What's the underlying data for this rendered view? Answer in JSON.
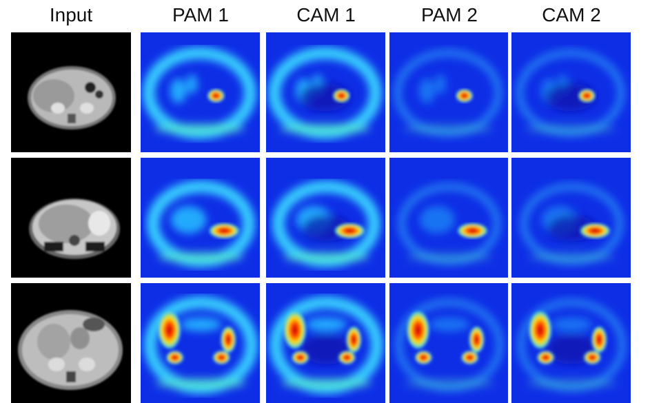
{
  "headers": [
    "Input",
    "PAM 1",
    "CAM 1",
    "PAM 2",
    "CAM 2"
  ],
  "rows": [
    {
      "panels": [
        "mri-abdomen-slice-1",
        "pam1-heatmap-row1",
        "cam1-heatmap-row1",
        "pam2-heatmap-row1",
        "cam2-heatmap-row1"
      ]
    },
    {
      "panels": [
        "mri-abdomen-slice-2",
        "pam1-heatmap-row2",
        "cam1-heatmap-row2",
        "pam2-heatmap-row2",
        "cam2-heatmap-row2"
      ]
    },
    {
      "panels": [
        "mri-abdomen-slice-3",
        "pam1-heatmap-row3",
        "cam1-heatmap-row3",
        "pam2-heatmap-row3",
        "cam2-heatmap-row3"
      ]
    }
  ],
  "colormap": {
    "low": "#0a1fd6",
    "mid": "#22c8ff",
    "high": "#ffdd00",
    "peak": "#e01010"
  },
  "background": "#000000"
}
